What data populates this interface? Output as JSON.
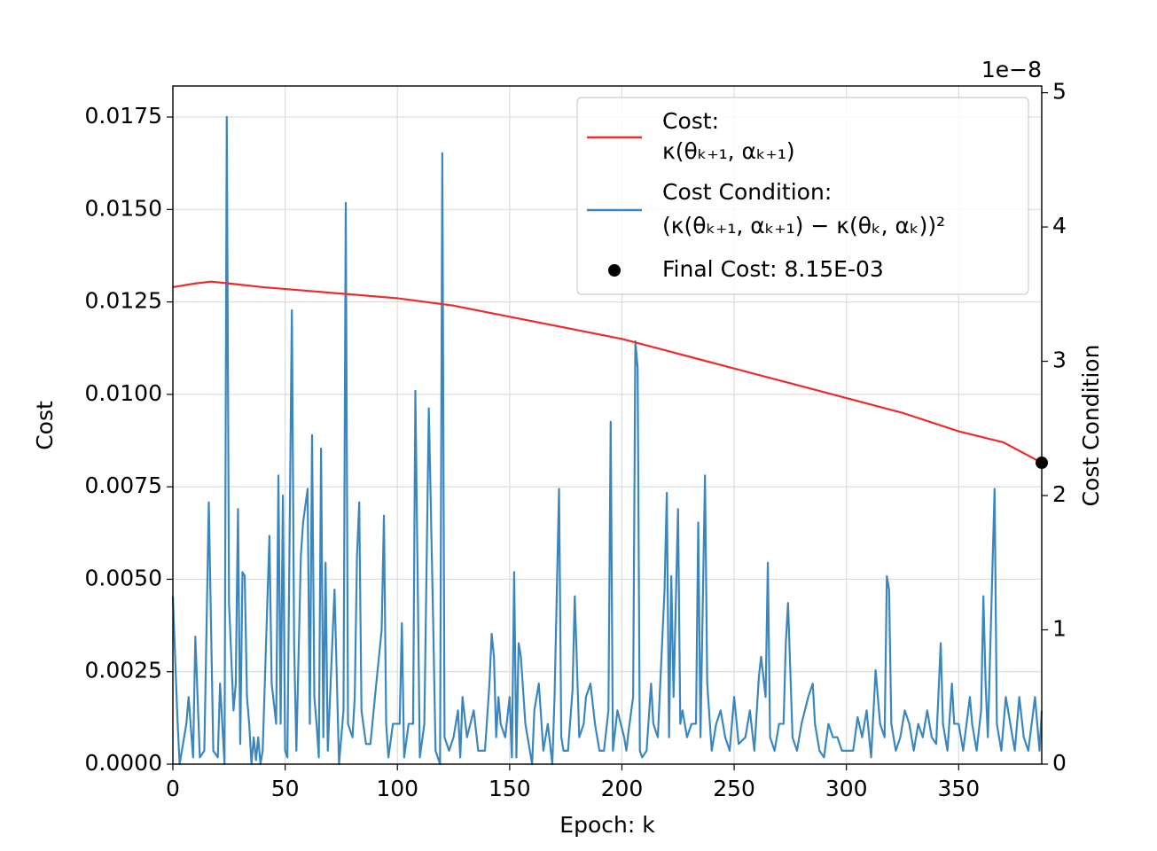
{
  "chart_data": {
    "type": "line",
    "xlabel": "Epoch: k",
    "ylabel": "Cost",
    "y2label": "Cost Condition",
    "y2_offset_text": "1e−8",
    "xlim": [
      0,
      387
    ],
    "xticks": [
      0,
      50,
      100,
      150,
      200,
      250,
      300,
      350
    ],
    "ylim": [
      0,
      0.01834
    ],
    "yticks": [
      {
        "value": 0,
        "label": "0.0000"
      },
      {
        "value": 0.0025,
        "label": "0.0025"
      },
      {
        "value": 0.005,
        "label": "0.0050"
      },
      {
        "value": 0.0075,
        "label": "0.0075"
      },
      {
        "value": 0.01,
        "label": "0.0100"
      },
      {
        "value": 0.0125,
        "label": "0.0125"
      },
      {
        "value": 0.015,
        "label": "0.0150"
      },
      {
        "value": 0.0175,
        "label": "0.0175"
      }
    ],
    "y2lim": [
      0,
      5.05
    ],
    "y2ticks": [
      0,
      1,
      2,
      3,
      4,
      5
    ],
    "grid": true,
    "legend": "upper right",
    "series": [
      {
        "name": "Cost:",
        "formula": "κ(θₖ₊₁, αₖ₊₁)",
        "color": "#f0292a",
        "kind": "line",
        "axis": "y",
        "x": [
          0,
          10,
          17,
          25,
          40,
          60,
          80,
          100,
          125,
          150,
          175,
          200,
          225,
          250,
          275,
          300,
          325,
          350,
          370,
          387
        ],
        "values": [
          0.0129,
          0.013,
          0.01305,
          0.013,
          0.0129,
          0.0128,
          0.0127,
          0.0126,
          0.0124,
          0.0121,
          0.0118,
          0.0115,
          0.0111,
          0.0107,
          0.0103,
          0.0099,
          0.0095,
          0.009,
          0.0087,
          0.00815
        ]
      },
      {
        "name": "Cost Condition:",
        "formula": "(κ(θₖ₊₁, αₖ₊₁) − κ(θₖ, αₖ))²",
        "color": "#3a87bf",
        "kind": "line",
        "axis": "y2",
        "x": [
          0,
          2,
          3,
          6,
          7,
          9,
          10,
          12,
          14,
          16,
          18,
          20,
          21,
          23,
          24,
          25,
          27,
          28,
          29,
          30,
          31,
          32,
          33,
          34,
          35,
          36,
          37,
          38,
          39,
          40,
          43,
          44,
          46,
          47,
          48,
          49,
          50,
          51,
          53,
          54,
          55,
          57,
          58,
          60,
          61,
          62,
          63,
          64,
          65,
          66,
          67,
          68,
          69,
          71,
          72,
          74,
          76,
          77,
          78,
          80,
          81,
          82,
          83,
          84,
          86,
          88,
          90,
          93,
          94,
          95,
          96,
          98,
          99,
          101,
          102,
          103,
          105,
          107,
          108,
          110,
          112,
          114,
          116,
          117,
          119,
          120,
          121,
          123,
          125,
          127,
          128,
          129,
          131,
          134,
          136,
          139,
          141,
          142,
          143,
          144,
          145,
          146,
          148,
          150,
          151,
          152,
          153,
          154,
          155,
          157,
          160,
          161,
          163,
          165,
          167,
          169,
          170,
          172,
          173,
          174,
          176,
          178,
          179,
          181,
          183,
          184,
          186,
          188,
          190,
          192,
          194,
          195,
          196,
          198,
          201,
          202,
          203,
          205,
          206,
          207,
          208,
          209,
          211,
          213,
          214,
          216,
          219,
          220,
          221,
          222,
          223,
          225,
          226,
          227,
          229,
          231,
          233,
          234,
          235,
          237,
          238,
          240,
          242,
          244,
          246,
          248,
          250,
          252,
          255,
          257,
          259,
          261,
          262,
          264,
          265,
          266,
          268,
          270,
          272,
          273,
          274,
          276,
          278,
          280,
          283,
          285,
          286,
          288,
          290,
          292,
          294,
          296,
          298,
          300,
          303,
          305,
          307,
          309,
          311,
          313,
          315,
          317,
          318,
          319,
          320,
          322,
          324,
          326,
          328,
          330,
          332,
          334,
          336,
          338,
          340,
          342,
          343,
          345,
          347,
          348,
          350,
          352,
          355,
          356,
          358,
          360,
          361,
          362,
          363,
          366,
          367,
          369,
          371,
          373,
          375,
          377,
          379,
          381,
          384,
          386,
          387
        ],
        "values": [
          1.25,
          0.35,
          0,
          0.3,
          0.5,
          0.05,
          0.95,
          0.05,
          0.1,
          1.95,
          0.1,
          0.05,
          0.6,
          0,
          4.82,
          1.2,
          0.4,
          0.6,
          1.9,
          0.15,
          1.43,
          1.4,
          0.5,
          0.3,
          0,
          0.2,
          0.03,
          0.2,
          0,
          0.1,
          1.7,
          0.6,
          0.3,
          2.15,
          0.3,
          2.0,
          0.1,
          0.05,
          3.38,
          0.9,
          0.1,
          1.55,
          1.8,
          2.05,
          0.3,
          2.45,
          0.5,
          0.3,
          0.05,
          2.35,
          0.2,
          1.5,
          0.1,
          0.9,
          1.3,
          0,
          0.4,
          4.18,
          0.3,
          0.2,
          0.5,
          1.55,
          1.95,
          0.4,
          0.15,
          0.15,
          0.5,
          1.0,
          1.85,
          0.3,
          0.05,
          0.3,
          0.3,
          0.3,
          1.05,
          0.05,
          0.3,
          0.3,
          2.78,
          0.05,
          0.3,
          2.65,
          1.0,
          0.1,
          0,
          4.55,
          0.2,
          0.1,
          0.2,
          0.4,
          0.05,
          0.5,
          0.2,
          0.4,
          0.1,
          0.1,
          0.6,
          0.97,
          0.8,
          0.2,
          0.5,
          0.3,
          0.2,
          0.5,
          0.05,
          1.43,
          0.05,
          0.9,
          0.8,
          0.3,
          0,
          0.4,
          0.6,
          0.1,
          0.3,
          0,
          0.5,
          2.05,
          0.2,
          0.1,
          0.1,
          0.55,
          1.25,
          0.2,
          0.3,
          0.5,
          0.6,
          0.3,
          0.1,
          0.1,
          0.4,
          2.55,
          0.1,
          0.4,
          0.2,
          0.1,
          0.25,
          0.5,
          3.15,
          2.95,
          0.1,
          0.05,
          0.1,
          0.6,
          0.3,
          0.2,
          1.3,
          2.02,
          0.2,
          1.4,
          0.5,
          1.9,
          0.3,
          0.4,
          0.2,
          0.3,
          0.3,
          1.8,
          0.2,
          2.15,
          0.6,
          0.1,
          0.3,
          0.4,
          0.2,
          0.1,
          0.5,
          0.15,
          0.2,
          0.4,
          0.1,
          0.65,
          0.8,
          0.5,
          1.5,
          0.2,
          0.1,
          0.3,
          0.3,
          0.9,
          1.2,
          0.2,
          0.1,
          0.3,
          0.5,
          0.6,
          0.3,
          0.1,
          0.05,
          0.3,
          0.2,
          0.2,
          0.1,
          0.1,
          0.1,
          0.35,
          0.2,
          0.4,
          0.05,
          0.7,
          0.3,
          0.2,
          1.4,
          1.3,
          0.3,
          0.1,
          0.2,
          0.4,
          0.3,
          0.1,
          0.3,
          0.2,
          0.4,
          0.2,
          0.15,
          0.9,
          0.3,
          0.1,
          0.6,
          0.3,
          0.3,
          0.1,
          0.5,
          0.3,
          0.1,
          0.4,
          1.25,
          0.6,
          0.2,
          2.05,
          0.3,
          0.1,
          0.5,
          0.3,
          0.1,
          0.5,
          0.2,
          0.1,
          0.5,
          0.1,
          0.4
        ]
      },
      {
        "name": "Final Cost: 8.15E-03",
        "color": "#000000",
        "kind": "point",
        "axis": "y",
        "x": [
          387
        ],
        "values": [
          0.00815
        ]
      }
    ]
  }
}
